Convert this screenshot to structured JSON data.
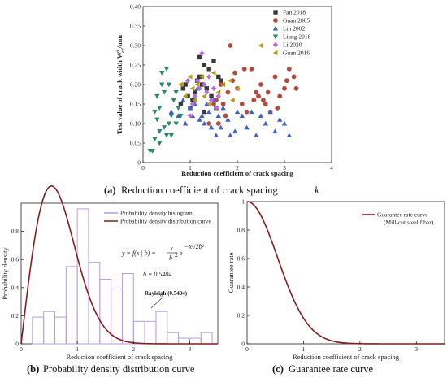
{
  "chart_data": [
    {
      "id": "a",
      "type": "scatter",
      "xlabel": "Reduction coefficient of crack spacing",
      "ylabel": "Test value of crack width W",
      "ylabel_sub": "cr",
      "ylabel_sup": "t",
      "ylabel_unit": "/mm",
      "xlim": [
        0,
        4
      ],
      "ylim": [
        0,
        0.4
      ],
      "xticks": [
        "0",
        "1",
        "2",
        "3",
        "4"
      ],
      "yticks": [
        "0",
        "0.05",
        "0.10",
        "0.15",
        "0.20",
        "0.25",
        "0.30",
        "0.35",
        "0.40"
      ],
      "legend_position": "top-right",
      "series": [
        {
          "name": "Fan 2018",
          "marker": "square",
          "color": "#3a3a3a",
          "points": [
            [
              0.85,
              0.19
            ],
            [
              0.9,
              0.2
            ],
            [
              0.95,
              0.17
            ],
            [
              1.05,
              0.16
            ],
            [
              1.1,
              0.18
            ],
            [
              1.15,
              0.21
            ],
            [
              1.2,
              0.22
            ],
            [
              1.25,
              0.2
            ],
            [
              1.3,
              0.25
            ],
            [
              1.35,
              0.19
            ],
            [
              1.4,
              0.24
            ],
            [
              1.5,
              0.26
            ],
            [
              1.6,
              0.22
            ],
            [
              1.65,
              0.21
            ],
            [
              0.8,
              0.15
            ],
            [
              1.0,
              0.14
            ],
            [
              1.45,
              0.17
            ],
            [
              1.55,
              0.14
            ],
            [
              1.2,
              0.27
            ],
            [
              1.3,
              0.13
            ]
          ]
        },
        {
          "name": "Guan 2005",
          "marker": "circle",
          "color": "#b34a3c",
          "points": [
            [
              1.6,
              0.1
            ],
            [
              1.7,
              0.15
            ],
            [
              1.8,
              0.18
            ],
            [
              1.9,
              0.21
            ],
            [
              2.0,
              0.19
            ],
            [
              2.1,
              0.15
            ],
            [
              2.2,
              0.13
            ],
            [
              2.3,
              0.24
            ],
            [
              2.4,
              0.18
            ],
            [
              2.5,
              0.2
            ],
            [
              2.6,
              0.15
            ],
            [
              2.7,
              0.13
            ],
            [
              2.8,
              0.22
            ],
            [
              2.9,
              0.17
            ],
            [
              3.0,
              0.19
            ],
            [
              3.1,
              0.24
            ],
            [
              3.2,
              0.22
            ],
            [
              3.25,
              0.19
            ],
            [
              1.55,
              0.16
            ],
            [
              2.15,
              0.24
            ],
            [
              2.45,
              0.17
            ],
            [
              1.75,
              0.12
            ],
            [
              2.85,
              0.14
            ],
            [
              1.4,
              0.1
            ],
            [
              1.95,
              0.23
            ],
            [
              2.55,
              0.16
            ],
            [
              1.85,
              0.3
            ],
            [
              2.35,
              0.16
            ],
            [
              1.5,
              0.15
            ],
            [
              1.65,
              0.2
            ],
            [
              3.05,
              0.21
            ],
            [
              2.65,
              0.18
            ]
          ]
        },
        {
          "name": "Lin 2002",
          "marker": "triangle-up",
          "color": "#3d63c9",
          "points": [
            [
              0.6,
              0.13
            ],
            [
              0.75,
              0.12
            ],
            [
              0.9,
              0.1
            ],
            [
              1.0,
              0.14
            ],
            [
              1.05,
              0.12
            ],
            [
              1.1,
              0.15
            ],
            [
              1.2,
              0.11
            ],
            [
              1.25,
              0.12
            ],
            [
              1.3,
              0.1
            ],
            [
              1.4,
              0.13
            ],
            [
              1.45,
              0.09
            ],
            [
              1.5,
              0.16
            ],
            [
              1.6,
              0.12
            ],
            [
              1.7,
              0.14
            ],
            [
              1.8,
              0.11
            ],
            [
              1.85,
              0.07
            ],
            [
              2.0,
              0.13
            ],
            [
              2.1,
              0.12
            ],
            [
              2.2,
              0.09
            ],
            [
              2.4,
              0.07
            ],
            [
              2.5,
              0.12
            ],
            [
              2.6,
              0.1
            ],
            [
              2.7,
              0.13
            ],
            [
              2.8,
              0.08
            ],
            [
              2.9,
              0.11
            ],
            [
              3.0,
              0.1
            ],
            [
              3.1,
              0.07
            ],
            [
              0.85,
              0.16
            ],
            [
              1.15,
              0.19
            ],
            [
              1.55,
              0.07
            ],
            [
              1.95,
              0.08
            ],
            [
              1.35,
              0.15
            ],
            [
              1.65,
              0.09
            ],
            [
              2.3,
              0.13
            ]
          ]
        },
        {
          "name": "Liang 2018",
          "marker": "triangle-down",
          "color": "#2a8a6a",
          "points": [
            [
              0.2,
              0.03
            ],
            [
              0.25,
              0.06
            ],
            [
              0.3,
              0.11
            ],
            [
              0.3,
              0.17
            ],
            [
              0.35,
              0.14
            ],
            [
              0.4,
              0.2
            ],
            [
              0.4,
              0.23
            ],
            [
              0.45,
              0.09
            ],
            [
              0.5,
              0.07
            ],
            [
              0.55,
              0.1
            ],
            [
              0.6,
              0.12
            ],
            [
              0.65,
              0.16
            ],
            [
              0.7,
              0.18
            ],
            [
              0.5,
              0.24
            ],
            [
              0.15,
              0.03
            ],
            [
              0.45,
              0.18
            ],
            [
              0.35,
              0.08
            ],
            [
              0.25,
              0.13
            ],
            [
              0.6,
              0.07
            ],
            [
              0.7,
              0.1
            ],
            [
              0.55,
              0.2
            ],
            [
              0.75,
              0.14
            ],
            [
              0.35,
              0.05
            ],
            [
              0.8,
              0.12
            ]
          ]
        },
        {
          "name": "Li 2020",
          "marker": "diamond",
          "color": "#b96bd8",
          "points": [
            [
              1.0,
              0.12
            ],
            [
              1.05,
              0.15
            ],
            [
              1.1,
              0.17
            ],
            [
              1.15,
              0.21
            ],
            [
              1.2,
              0.19
            ],
            [
              1.25,
              0.28
            ],
            [
              1.3,
              0.2
            ],
            [
              1.35,
              0.18
            ],
            [
              1.45,
              0.16
            ],
            [
              1.55,
              0.14
            ],
            [
              0.95,
              0.21
            ],
            [
              1.6,
              0.17
            ],
            [
              1.4,
              0.22
            ],
            [
              1.5,
              0.19
            ]
          ]
        },
        {
          "name": "Guan 2016",
          "marker": "triangle-left",
          "color": "#b49a1a",
          "points": [
            [
              0.8,
              0.2
            ],
            [
              0.9,
              0.17
            ],
            [
              1.0,
              0.22
            ],
            [
              1.05,
              0.19
            ],
            [
              1.1,
              0.16
            ],
            [
              1.15,
              0.2
            ],
            [
              1.25,
              0.22
            ],
            [
              1.3,
              0.17
            ],
            [
              1.4,
              0.15
            ],
            [
              1.6,
              0.18
            ],
            [
              1.7,
              0.2
            ],
            [
              1.85,
              0.21
            ],
            [
              2.0,
              0.19
            ],
            [
              2.5,
              0.3
            ],
            [
              1.5,
              0.23
            ],
            [
              1.9,
              0.16
            ]
          ]
        }
      ]
    },
    {
      "id": "b",
      "type": "bar",
      "xlabel": "Reduction coefficient of crack spacing",
      "ylabel": "Probability density",
      "xlim": [
        0,
        3.5
      ],
      "ylim": [
        0,
        1.0
      ],
      "xticks": [
        "0",
        "1",
        "2",
        "3"
      ],
      "yticks": [
        "0",
        "0.2",
        "0.4",
        "0.6",
        "0.8"
      ],
      "legend_position": "top-right",
      "histogram": {
        "name": "Probability density histogram",
        "color": "#b79be0",
        "bin_width": 0.2,
        "bin_start": 0,
        "values": [
          0.0,
          0.19,
          0.23,
          0.19,
          0.55,
          0.96,
          0.58,
          0.46,
          0.39,
          0.5,
          0.16,
          0.16,
          0.23,
          0.08,
          0.04,
          0.04,
          0.08
        ]
      },
      "curve": {
        "name": "Probability density distribution curve",
        "color": "#8b1a1a",
        "distribution": "rayleigh",
        "b": 0.5404
      },
      "formula": {
        "lhs": "y = f(x | b) =",
        "numerator": "x",
        "denominator": "b",
        "denominator_exp": "2",
        "exp_base": "e",
        "exponent": "−x²/2b²"
      },
      "b_label": "b = 0.5404",
      "annotation": "Rayleigh (0.5404)"
    },
    {
      "id": "c",
      "type": "line",
      "xlabel": "Reduction coefficient of crack spacing",
      "ylabel": "Guarantee rate",
      "xlim": [
        0,
        3.5
      ],
      "ylim": [
        0,
        1.0
      ],
      "xticks": [
        "0",
        "1",
        "2",
        "3"
      ],
      "yticks": [
        "0",
        "0.2",
        "0.4",
        "0.6",
        "0.8",
        "1"
      ],
      "legend_position": "top-right",
      "series": [
        {
          "name": "Guarantee rate curve",
          "subname": "(Mill-cut steel fiber)",
          "color": "#8b1a1a",
          "distribution": "rayleigh-survival",
          "b": 0.5404
        }
      ]
    }
  ],
  "captions": {
    "a": {
      "letter": "(a)",
      "text": "Reduction coefficient of crack spacing",
      "symbol": "k"
    },
    "b": {
      "letter": "(b)",
      "text": "Probability density distribution curve"
    },
    "c": {
      "letter": "(c)",
      "text": "Guarantee rate curve"
    }
  }
}
